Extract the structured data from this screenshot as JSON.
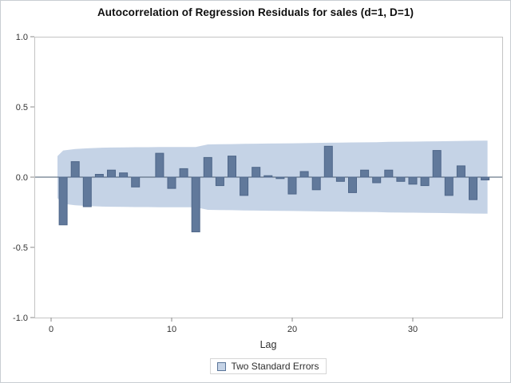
{
  "title": "Autocorrelation of Regression Residuals for sales (d=1, D=1)",
  "xaxis_label": "Lag",
  "legend": {
    "label": "Two Standard Errors"
  },
  "chart_data": {
    "type": "bar",
    "title": "Autocorrelation of Regression Residuals for sales (d=1, D=1)",
    "xlabel": "Lag",
    "ylabel": "",
    "ylim": [
      -1.0,
      1.0
    ],
    "xlim": [
      -1.4,
      37.4
    ],
    "yticks": [
      "1.0",
      "0.5",
      "0.0",
      "-0.5",
      "-1.0"
    ],
    "xticks": [
      "0",
      "10",
      "20",
      "30"
    ],
    "grid": false,
    "legend_position": "bottom",
    "legend_label": "Two Standard Errors",
    "lags": [
      1,
      2,
      3,
      4,
      5,
      6,
      7,
      8,
      9,
      10,
      11,
      12,
      13,
      14,
      15,
      16,
      17,
      18,
      19,
      20,
      21,
      22,
      23,
      24,
      25,
      26,
      27,
      28,
      29,
      30,
      31,
      32,
      33,
      34,
      35,
      36
    ],
    "acf": [
      -0.34,
      0.11,
      -0.21,
      0.02,
      0.05,
      0.03,
      -0.07,
      0.0,
      0.17,
      -0.08,
      0.06,
      -0.39,
      0.14,
      -0.06,
      0.15,
      -0.13,
      0.07,
      0.01,
      -0.01,
      -0.12,
      0.04,
      -0.09,
      0.22,
      -0.03,
      -0.11,
      0.05,
      -0.04,
      0.05,
      -0.03,
      -0.05,
      -0.06,
      0.19,
      -0.13,
      0.08,
      -0.16,
      -0.02
    ],
    "band_upper": [
      0.19,
      0.2,
      0.205,
      0.209,
      0.211,
      0.212,
      0.213,
      0.213,
      0.214,
      0.214,
      0.215,
      0.215,
      0.233,
      0.234,
      0.235,
      0.237,
      0.238,
      0.239,
      0.24,
      0.241,
      0.242,
      0.244,
      0.245,
      0.246,
      0.247,
      0.248,
      0.249,
      0.251,
      0.252,
      0.253,
      0.254,
      0.255,
      0.256,
      0.258,
      0.259,
      0.26
    ],
    "band_symmetric": true,
    "band_x_start_lag": 0.53,
    "band_x_end_lag": 36.2,
    "band_start_halfwidth": 0.15,
    "colors": {
      "band_fill": "#c5d3e6",
      "bar_fill": "#61799b",
      "bar_stroke": "#4e6689",
      "zero_line": "#46586e",
      "frame": "#c4c4c4",
      "tick": "#8a8a8a",
      "tick_text": "#333333",
      "legend_swatch_border": "#5a7599"
    }
  }
}
